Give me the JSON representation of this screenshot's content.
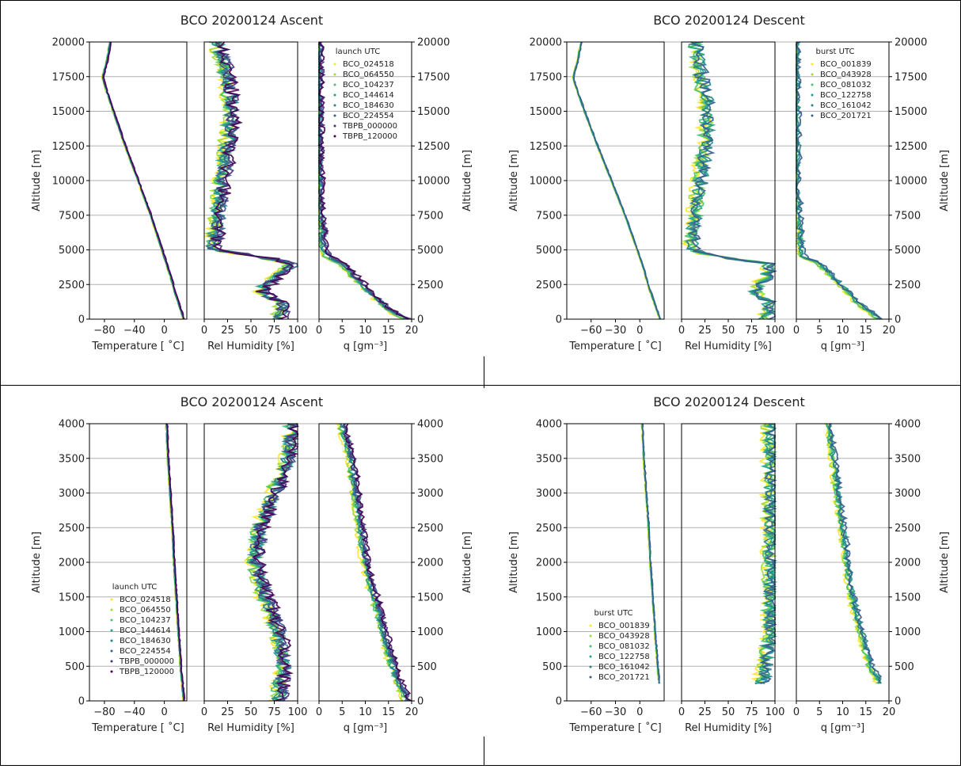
{
  "colors": {
    "series": [
      "#fde725",
      "#a0da39",
      "#4ac16d",
      "#1fa187",
      "#277f8e",
      "#365c8d",
      "#46327e",
      "#440154"
    ],
    "grid": "#b0b0b0",
    "frame": "#000000"
  },
  "panels": [
    {
      "title": "BCO 20200124 Ascent",
      "ylim": [
        0,
        20000
      ],
      "yticks": [
        0,
        2500,
        5000,
        7500,
        10000,
        12500,
        15000,
        17500,
        20000
      ],
      "temp_ticks": [
        "−80",
        "−40",
        "0"
      ],
      "rh_ticks": [
        "0",
        "25",
        "50",
        "75",
        "100"
      ],
      "q_ticks": [
        "0",
        "5",
        "10",
        "15",
        "20"
      ],
      "legend_title": "launch UTC",
      "legend": [
        "BCO_024518",
        "BCO_064550",
        "BCO_104237",
        "BCO_144614",
        "BCO_184630",
        "BCO_224554",
        "TBPB_000000",
        "TBPB_120000"
      ]
    },
    {
      "title": "BCO 20200124 Descent",
      "ylim": [
        0,
        20000
      ],
      "yticks": [
        0,
        2500,
        5000,
        7500,
        10000,
        12500,
        15000,
        17500,
        20000
      ],
      "temp_ticks": [
        "−60",
        "−30",
        "0"
      ],
      "rh_ticks": [
        "0",
        "25",
        "50",
        "75",
        "100"
      ],
      "q_ticks": [
        "0",
        "5",
        "10",
        "15",
        "20"
      ],
      "legend_title": "burst UTC",
      "legend": [
        "BCO_001839",
        "BCO_043928",
        "BCO_081032",
        "BCO_122758",
        "BCO_161042",
        "BCO_201721"
      ]
    },
    {
      "title": "BCO 20200124 Ascent",
      "ylim": [
        0,
        4000
      ],
      "yticks": [
        0,
        500,
        1000,
        1500,
        2000,
        2500,
        3000,
        3500,
        4000
      ],
      "temp_ticks": [
        "−80",
        "−40",
        "0"
      ],
      "rh_ticks": [
        "0",
        "25",
        "50",
        "75",
        "100"
      ],
      "q_ticks": [
        "0",
        "5",
        "10",
        "15",
        "20"
      ],
      "legend_title": "launch UTC",
      "legend": [
        "BCO_024518",
        "BCO_064550",
        "BCO_104237",
        "BCO_144614",
        "BCO_184630",
        "BCO_224554",
        "TBPB_000000",
        "TBPB_120000"
      ]
    },
    {
      "title": "BCO 20200124 Descent",
      "ylim": [
        0,
        4000
      ],
      "yticks": [
        0,
        500,
        1000,
        1500,
        2000,
        2500,
        3000,
        3500,
        4000
      ],
      "temp_ticks": [
        "−60",
        "−30",
        "0"
      ],
      "rh_ticks": [
        "0",
        "25",
        "50",
        "75",
        "100"
      ],
      "q_ticks": [
        "0",
        "5",
        "10",
        "15",
        "20"
      ],
      "legend_title": "burst UTC",
      "legend": [
        "BCO_001839",
        "BCO_043928",
        "BCO_081032",
        "BCO_122758",
        "BCO_161042",
        "BCO_201721"
      ]
    }
  ],
  "labels": {
    "altitude": "Altitude [m]",
    "temperature": "Temperature [$^\\circ$C]",
    "temperature_display": "Temperature [ ˚C]",
    "rel_humidity": "Rel Humidity [%]",
    "q": "q [gm⁻³]"
  },
  "chart_data": [
    {
      "type": "line",
      "title": "BCO 20200124 Ascent",
      "ylabel": "Altitude [m]",
      "ylim": [
        0,
        20000
      ],
      "grid": true,
      "legend_placement": "upper-right of q panel",
      "subplots": [
        {
          "xlabel": "Temperature [ ˚C]",
          "xlim": [
            -100,
            30
          ],
          "profile": {
            "altitude": [
              0,
              1000,
              2000,
              3000,
              4000,
              5000,
              7500,
              10000,
              12500,
              15000,
              17000,
              17500,
              18500,
              20000
            ],
            "value": [
              26,
              20,
              14,
              9,
              3,
              -3,
              -18,
              -35,
              -52,
              -68,
              -80,
              -82,
              -77,
              -72
            ]
          }
        },
        {
          "xlabel": "Rel Humidity [%]",
          "xlim": [
            0,
            100
          ],
          "profile": {
            "altitude": [
              0,
              1000,
              2000,
              3000,
              4000,
              4500,
              5000,
              7500,
              10000,
              12500,
              15000,
              17500,
              20000
            ],
            "value": [
              80,
              85,
              60,
              75,
              95,
              60,
              10,
              15,
              20,
              25,
              30,
              25,
              15
            ]
          }
        },
        {
          "xlabel": "q [gm⁻³]",
          "xlim": [
            0,
            20
          ],
          "profile": {
            "altitude": [
              0,
              500,
              1000,
              2000,
              3000,
              4000,
              4500,
              5000,
              7500,
              10000,
              20000
            ],
            "value": [
              19,
              16,
              14,
              11,
              8,
              5,
              2,
              1,
              0.5,
              0.1,
              0
            ]
          }
        }
      ],
      "series": [
        {
          "name": "BCO_024518"
        },
        {
          "name": "BCO_064550"
        },
        {
          "name": "BCO_104237"
        },
        {
          "name": "BCO_144614"
        },
        {
          "name": "BCO_184630"
        },
        {
          "name": "BCO_224554"
        },
        {
          "name": "TBPB_000000"
        },
        {
          "name": "TBPB_120000"
        }
      ]
    },
    {
      "type": "line",
      "title": "BCO 20200124 Descent",
      "ylabel": "Altitude [m]",
      "ylim": [
        0,
        20000
      ],
      "grid": true,
      "legend_placement": "upper-right of q panel",
      "subplots": [
        {
          "xlabel": "Temperature [ ˚C]",
          "xlim": [
            -90,
            30
          ],
          "profile": {
            "altitude": [
              0,
              1000,
              2000,
              3000,
              4000,
              5000,
              7500,
              10000,
              12500,
              15000,
              17000,
              17500,
              18500,
              20000
            ],
            "value": [
              25,
              19,
              13,
              8,
              3,
              -3,
              -18,
              -35,
              -52,
              -68,
              -80,
              -82,
              -77,
              -72
            ]
          }
        },
        {
          "xlabel": "Rel Humidity [%]",
          "xlim": [
            0,
            100
          ],
          "profile": {
            "altitude": [
              0,
              1000,
              2000,
              3000,
              4000,
              4500,
              5000,
              7500,
              10000,
              12500,
              15000,
              17500,
              20000
            ],
            "value": [
              90,
              95,
              80,
              90,
              95,
              40,
              10,
              15,
              20,
              25,
              28,
              20,
              15
            ]
          }
        },
        {
          "xlabel": "q [gm⁻³]",
          "xlim": [
            0,
            20
          ],
          "profile": {
            "altitude": [
              0,
              500,
              1000,
              2000,
              3000,
              4000,
              4500,
              5000,
              7500,
              10000,
              20000
            ],
            "value": [
              18,
              16,
              14,
              11,
              8,
              5,
              1.5,
              1,
              0.5,
              0.1,
              0
            ]
          }
        }
      ],
      "series": [
        {
          "name": "BCO_001839"
        },
        {
          "name": "BCO_043928"
        },
        {
          "name": "BCO_081032"
        },
        {
          "name": "BCO_122758"
        },
        {
          "name": "BCO_161042"
        },
        {
          "name": "BCO_201721"
        }
      ]
    },
    {
      "type": "line",
      "title": "BCO 20200124 Ascent",
      "ylabel": "Altitude [m]",
      "ylim": [
        0,
        4000
      ],
      "grid": true,
      "legend_placement": "lower-left of temperature panel",
      "subplots": [
        {
          "xlabel": "Temperature [ ˚C]",
          "xlim": [
            -100,
            30
          ],
          "profile": {
            "altitude": [
              0,
              500,
              1000,
              1500,
              2000,
              2500,
              3000,
              3500,
              4000
            ],
            "value": [
              26,
              22,
              19,
              16,
              13,
              11,
              8,
              5,
              3
            ]
          }
        },
        {
          "xlabel": "Rel Humidity [%]",
          "xlim": [
            0,
            100
          ],
          "profile": {
            "altitude": [
              0,
              500,
              1000,
              1500,
              2000,
              2500,
              3000,
              3500,
              4000
            ],
            "value": [
              80,
              85,
              80,
              65,
              55,
              60,
              75,
              90,
              95
            ]
          }
        },
        {
          "xlabel": "q [gm⁻³]",
          "xlim": [
            0,
            20
          ],
          "profile": {
            "altitude": [
              0,
              500,
              1000,
              1500,
              2000,
              2500,
              3000,
              3500,
              4000
            ],
            "value": [
              19,
              16,
              14,
              12,
              10,
              9,
              8,
              7,
              5
            ]
          }
        }
      ],
      "series": [
        {
          "name": "BCO_024518"
        },
        {
          "name": "BCO_064550"
        },
        {
          "name": "BCO_104237"
        },
        {
          "name": "BCO_144614"
        },
        {
          "name": "BCO_184630"
        },
        {
          "name": "BCO_224554"
        },
        {
          "name": "TBPB_000000"
        },
        {
          "name": "TBPB_120000"
        }
      ]
    },
    {
      "type": "line",
      "title": "BCO 20200124 Descent",
      "ylabel": "Altitude [m]",
      "ylim": [
        0,
        4000
      ],
      "grid": true,
      "legend_placement": "lower-left of temperature panel",
      "subplots": [
        {
          "xlabel": "Temperature [ ˚C]",
          "xlim": [
            -90,
            30
          ],
          "profile": {
            "altitude": [
              250,
              500,
              1000,
              1500,
              2000,
              2500,
              3000,
              3500,
              4000
            ],
            "value": [
              24,
              22,
              19,
              16,
              13,
              11,
              8,
              5,
              3
            ]
          }
        },
        {
          "xlabel": "Rel Humidity [%]",
          "xlim": [
            0,
            100
          ],
          "profile": {
            "altitude": [
              250,
              500,
              1000,
              1500,
              2000,
              2500,
              3000,
              3500,
              4000
            ],
            "value": [
              85,
              90,
              95,
              95,
              95,
              95,
              95,
              95,
              95
            ]
          }
        },
        {
          "xlabel": "q [gm⁻³]",
          "xlim": [
            0,
            20
          ],
          "profile": {
            "altitude": [
              250,
              500,
              1000,
              1500,
              2000,
              2500,
              3000,
              3500,
              4000
            ],
            "value": [
              18,
              16,
              14,
              12,
              11,
              10,
              9,
              8,
              7
            ]
          }
        }
      ],
      "series": [
        {
          "name": "BCO_001839"
        },
        {
          "name": "BCO_043928"
        },
        {
          "name": "BCO_081032"
        },
        {
          "name": "BCO_122758"
        },
        {
          "name": "BCO_161042"
        },
        {
          "name": "BCO_201721"
        }
      ]
    }
  ]
}
